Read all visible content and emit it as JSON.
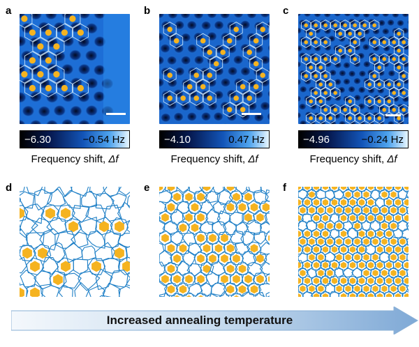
{
  "panels": [
    {
      "letter": "a",
      "cbar_min": "−6.30",
      "cbar_max": "−0.54 Hz",
      "cbar_label": "Frequency shift, ",
      "cbar_symbol": "Δf"
    },
    {
      "letter": "b",
      "cbar_min": "−4.10",
      "cbar_max": "0.47 Hz",
      "cbar_label": "Frequency shift, ",
      "cbar_symbol": "Δf"
    },
    {
      "letter": "c",
      "cbar_min": "−4.96",
      "cbar_max": "−0.24 Hz",
      "cbar_label": "Frequency shift, ",
      "cbar_symbol": "Δf"
    }
  ],
  "network_panels": [
    {
      "letter": "d",
      "hexagon_fraction": 0.2
    },
    {
      "letter": "e",
      "hexagon_fraction": 0.55
    },
    {
      "letter": "f",
      "hexagon_fraction": 0.85
    }
  ],
  "arrow_label": "Increased annealing temperature",
  "colors": {
    "hexagon_fill": "#f5b320",
    "network_line": "#1e7fc6",
    "afm_dark": "#051a4a",
    "afm_light": "#3c9ef0",
    "outline": "#d8f0ff"
  }
}
